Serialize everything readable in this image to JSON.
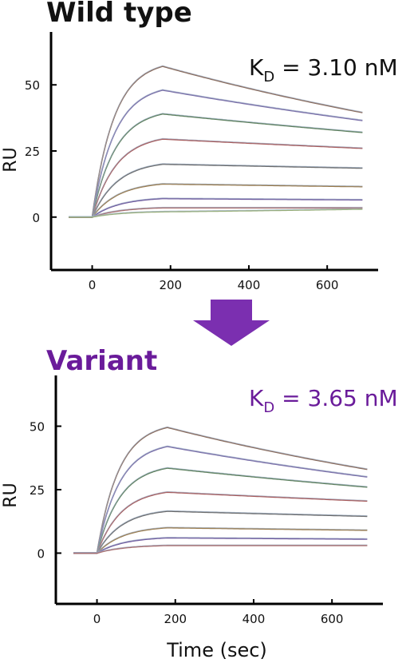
{
  "colors": {
    "title_top": "#111111",
    "accent_purple": "#6a1b9a",
    "arrow": "#7b2fb0",
    "series_palette": [
      "#8a6a5a",
      "#7a6ea8",
      "#5c7f5a",
      "#a85a5a",
      "#6b6b6b",
      "#9a7a4a",
      "#6f5a9e",
      "#a86a6a",
      "#9ab07a"
    ]
  },
  "arrow_icon": "down-arrow-icon",
  "chart_data": [
    {
      "type": "line",
      "title": "Wild type",
      "annotation": {
        "main": "K",
        "sub": "D",
        "rest": " = 3.10 nM"
      },
      "xlabel": "",
      "ylabel": "RU",
      "xlim": [
        -105,
        730
      ],
      "ylim": [
        -20,
        70
      ],
      "xticks": [
        "0",
        "200",
        "400",
        "600"
      ],
      "xtick_values": [
        0,
        200,
        400,
        600
      ],
      "yticks": [
        "0",
        "25",
        "50"
      ],
      "ytick_values": [
        0,
        25,
        50
      ],
      "inject_end": 180,
      "series": [
        {
          "values_at": {
            "x": [
              0,
              180,
              690
            ],
            "y": [
              0,
              57,
              39.5
            ]
          }
        },
        {
          "values_at": {
            "x": [
              0,
              180,
              690
            ],
            "y": [
              0,
              48,
              36.5
            ]
          }
        },
        {
          "values_at": {
            "x": [
              0,
              180,
              690
            ],
            "y": [
              0,
              39,
              32
            ]
          }
        },
        {
          "values_at": {
            "x": [
              0,
              180,
              690
            ],
            "y": [
              0,
              29.5,
              26
            ]
          }
        },
        {
          "values_at": {
            "x": [
              0,
              180,
              690
            ],
            "y": [
              0,
              20,
              18.5
            ]
          }
        },
        {
          "values_at": {
            "x": [
              0,
              180,
              690
            ],
            "y": [
              0,
              12.5,
              11.5
            ]
          }
        },
        {
          "values_at": {
            "x": [
              0,
              180,
              690
            ],
            "y": [
              0,
              7,
              6.5
            ]
          }
        },
        {
          "values_at": {
            "x": [
              0,
              180,
              690
            ],
            "y": [
              0,
              3.5,
              3.5
            ]
          }
        },
        {
          "values_at": {
            "x": [
              0,
              180,
              690
            ],
            "y": [
              0,
              2,
              3
            ]
          }
        }
      ]
    },
    {
      "type": "line",
      "title": "Variant",
      "annotation": {
        "main": "K",
        "sub": "D",
        "rest": " = 3.65 nM"
      },
      "xlabel": "Time (sec)",
      "ylabel": "RU",
      "xlim": [
        -105,
        730
      ],
      "ylim": [
        -20,
        70
      ],
      "xticks": [
        "0",
        "200",
        "400",
        "600"
      ],
      "xtick_values": [
        0,
        200,
        400,
        600
      ],
      "yticks": [
        "0",
        "25",
        "50"
      ],
      "ytick_values": [
        0,
        25,
        50
      ],
      "inject_end": 180,
      "series": [
        {
          "values_at": {
            "x": [
              0,
              180,
              690
            ],
            "y": [
              0,
              49.5,
              33
            ]
          }
        },
        {
          "values_at": {
            "x": [
              0,
              180,
              690
            ],
            "y": [
              0,
              42,
              30
            ]
          }
        },
        {
          "values_at": {
            "x": [
              0,
              180,
              690
            ],
            "y": [
              0,
              33.5,
              26
            ]
          }
        },
        {
          "values_at": {
            "x": [
              0,
              180,
              690
            ],
            "y": [
              0,
              24,
              20.5
            ]
          }
        },
        {
          "values_at": {
            "x": [
              0,
              180,
              690
            ],
            "y": [
              0,
              16.5,
              14.5
            ]
          }
        },
        {
          "values_at": {
            "x": [
              0,
              180,
              690
            ],
            "y": [
              0,
              10,
              9
            ]
          }
        },
        {
          "values_at": {
            "x": [
              0,
              180,
              690
            ],
            "y": [
              0,
              6,
              5.5
            ]
          }
        },
        {
          "values_at": {
            "x": [
              0,
              180,
              690
            ],
            "y": [
              0,
              3,
              3
            ]
          }
        }
      ]
    }
  ]
}
